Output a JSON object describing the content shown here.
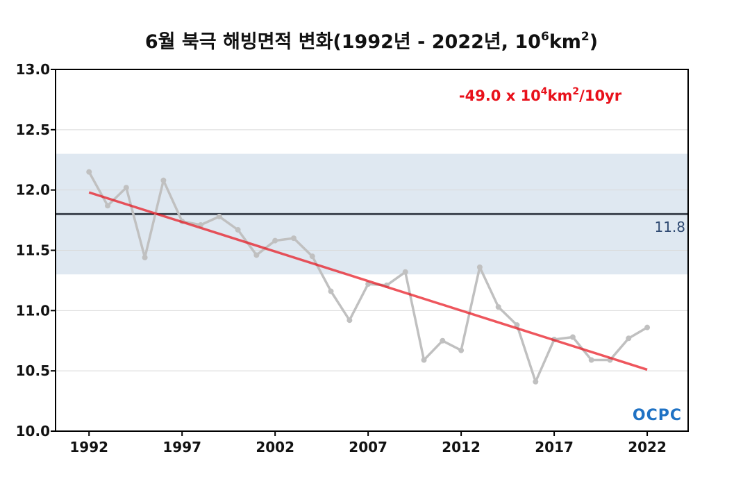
{
  "title": {
    "main": "6월 북극 해빙면적 변화(1992년 - 2022년, 10",
    "exp1": "6",
    "mid": "km",
    "exp2": "2",
    "end": ")"
  },
  "trend_annotation": {
    "main": "-49.0 x 10",
    "exp1": "4",
    "mid": "km",
    "exp2": "2",
    "end": "/10yr",
    "color": "#e8101a"
  },
  "mean_label": "11.8",
  "logo_text": "OCPC",
  "colors": {
    "series": "#c0c0c0",
    "trend": "#e8101a",
    "mean": "#3f4651",
    "band": "#dfe8f1",
    "grid": "#d9d9d9",
    "mean_label": "#2f4a72",
    "logo": "#1f72c4"
  },
  "chart_data": {
    "type": "line",
    "x": [
      1992,
      1993,
      1994,
      1995,
      1996,
      1997,
      1998,
      1999,
      2000,
      2001,
      2002,
      2003,
      2004,
      2005,
      2006,
      2007,
      2008,
      2009,
      2010,
      2011,
      2012,
      2013,
      2014,
      2015,
      2016,
      2017,
      2018,
      2019,
      2020,
      2021,
      2022
    ],
    "values": [
      12.15,
      11.87,
      12.02,
      11.44,
      12.08,
      11.74,
      11.71,
      11.78,
      11.67,
      11.46,
      11.58,
      11.6,
      11.45,
      11.16,
      10.92,
      11.22,
      11.21,
      11.32,
      10.59,
      10.75,
      10.67,
      11.36,
      11.03,
      10.88,
      10.41,
      10.76,
      10.78,
      10.59,
      10.59,
      10.77,
      10.86
    ],
    "trend": {
      "x": [
        1992,
        2022
      ],
      "y": [
        11.98,
        10.51
      ],
      "rate_label": "-49.0 x 10^4 km^2/10yr"
    },
    "mean": 11.8,
    "band": [
      11.3,
      12.3
    ],
    "xlim": [
      1990.2,
      2024.2
    ],
    "ylim": [
      10.0,
      13.0
    ],
    "xticks": [
      "1992",
      "1997",
      "2002",
      "2007",
      "2012",
      "2017",
      "2022"
    ],
    "xtick_values": [
      1992,
      1997,
      2002,
      2007,
      2012,
      2017,
      2022
    ],
    "yticks": [
      "10.0",
      "10.5",
      "11.0",
      "11.5",
      "12.0",
      "12.5",
      "13.0"
    ],
    "ytick_values": [
      10.0,
      10.5,
      11.0,
      11.5,
      12.0,
      12.5,
      13.0
    ],
    "grid": "horizontal",
    "title": "6월 북극 해빙면적 변화(1992년 - 2022년, 10^6km^2)"
  }
}
